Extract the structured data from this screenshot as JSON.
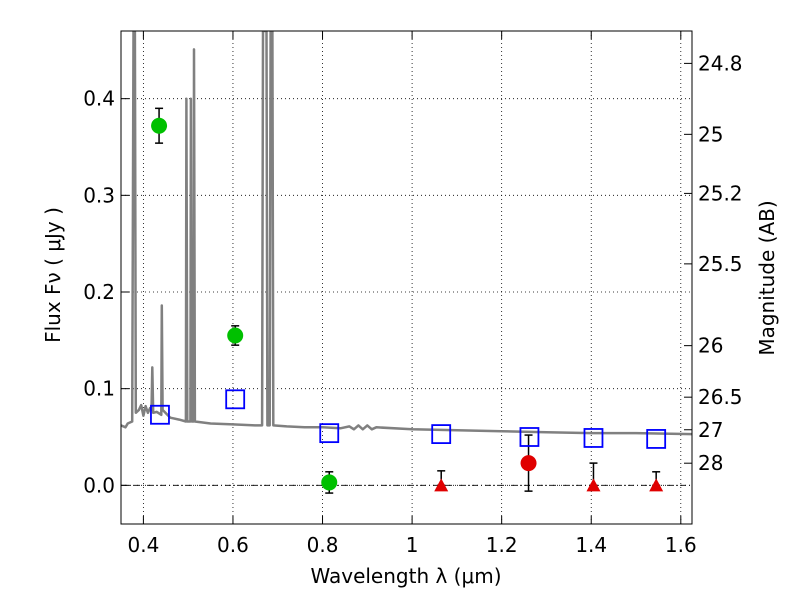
{
  "chart_data": {
    "type": "scatter",
    "xlabel": "Wavelength  λ (μm)",
    "ylabel": "Flux  Fν  ( μJy )",
    "y2label": "Magnitude (AB)",
    "xlim": [
      0.35,
      1.625
    ],
    "ylim": [
      -0.04,
      0.47
    ],
    "x_ticks": [
      0.4,
      0.6,
      0.8,
      1.0,
      1.2,
      1.4,
      1.6
    ],
    "x_tick_labels": [
      "0.4",
      "0.6",
      "0.8",
      "1",
      "1.2",
      "1.4",
      "1.6"
    ],
    "y_ticks": [
      0.0,
      0.1,
      0.2,
      0.3,
      0.4
    ],
    "y_tick_labels": [
      "0.0",
      "0.1",
      "0.2",
      "0.3",
      "0.4"
    ],
    "magnitude_ticks": [
      {
        "label": "24.8",
        "flux": 0.4365
      },
      {
        "label": "25",
        "flux": 0.3631
      },
      {
        "label": "25.2",
        "flux": 0.302
      },
      {
        "label": "25.5",
        "flux": 0.2291
      },
      {
        "label": "26",
        "flux": 0.1445
      },
      {
        "label": "26.5",
        "flux": 0.0912
      },
      {
        "label": "27",
        "flux": 0.0575
      },
      {
        "label": "28",
        "flux": 0.0229
      }
    ],
    "grid": true,
    "colors": {
      "spectrum": "#808080",
      "green_points": "#00c000",
      "red_points": "#e00000",
      "model_squares": "#0000ff",
      "error_bars": "#000000"
    },
    "series": [
      {
        "kind": "spectrum",
        "points": [
          [
            0.35,
            0.062
          ],
          [
            0.36,
            0.06
          ],
          [
            0.365,
            0.064
          ],
          [
            0.375,
            0.066
          ],
          [
            0.378,
            0.47
          ],
          [
            0.381,
            0.47
          ],
          [
            0.383,
            0.075
          ],
          [
            0.39,
            0.078
          ],
          [
            0.395,
            0.083
          ],
          [
            0.4,
            0.072
          ],
          [
            0.405,
            0.082
          ],
          [
            0.41,
            0.075
          ],
          [
            0.415,
            0.08
          ],
          [
            0.418,
            0.078
          ],
          [
            0.42,
            0.122
          ],
          [
            0.422,
            0.075
          ],
          [
            0.43,
            0.076
          ],
          [
            0.44,
            0.073
          ],
          [
            0.441,
            0.186
          ],
          [
            0.443,
            0.078
          ],
          [
            0.46,
            0.07
          ],
          [
            0.48,
            0.068
          ],
          [
            0.495,
            0.066
          ],
          [
            0.496,
            0.4
          ],
          [
            0.498,
            0.066
          ],
          [
            0.505,
            0.066
          ],
          [
            0.506,
            0.4
          ],
          [
            0.508,
            0.066
          ],
          [
            0.512,
            0.066
          ],
          [
            0.513,
            0.451
          ],
          [
            0.515,
            0.066
          ],
          [
            0.55,
            0.064
          ],
          [
            0.6,
            0.063
          ],
          [
            0.65,
            0.062
          ],
          [
            0.665,
            0.062
          ],
          [
            0.667,
            0.47
          ],
          [
            0.675,
            0.47
          ],
          [
            0.677,
            0.062
          ],
          [
            0.682,
            0.062
          ],
          [
            0.684,
            0.47
          ],
          [
            0.688,
            0.47
          ],
          [
            0.69,
            0.062
          ],
          [
            0.72,
            0.061
          ],
          [
            0.76,
            0.06
          ],
          [
            0.8,
            0.06
          ],
          [
            0.84,
            0.059
          ],
          [
            0.86,
            0.061
          ],
          [
            0.87,
            0.058
          ],
          [
            0.88,
            0.062
          ],
          [
            0.89,
            0.058
          ],
          [
            0.9,
            0.062
          ],
          [
            0.91,
            0.058
          ],
          [
            0.92,
            0.06
          ],
          [
            1.0,
            0.058
          ],
          [
            1.1,
            0.057
          ],
          [
            1.2,
            0.056
          ],
          [
            1.3,
            0.055
          ],
          [
            1.4,
            0.054
          ],
          [
            1.5,
            0.054
          ],
          [
            1.625,
            0.053
          ]
        ]
      },
      {
        "kind": "green_points",
        "points": [
          {
            "x": 0.435,
            "y": 0.372,
            "err": 0.018
          },
          {
            "x": 0.605,
            "y": 0.155,
            "err": 0.01
          },
          {
            "x": 0.815,
            "y": 0.003,
            "err": 0.011
          }
        ]
      },
      {
        "kind": "red_points",
        "points": [
          {
            "x": 1.26,
            "y": 0.023,
            "err": 0.029
          }
        ]
      },
      {
        "kind": "red_triangles",
        "points": [
          {
            "x": 1.065,
            "y": 0.0,
            "err_up": 0.015
          },
          {
            "x": 1.405,
            "y": 0.0,
            "err_up": 0.023
          },
          {
            "x": 1.545,
            "y": 0.0,
            "err_up": 0.014
          }
        ]
      },
      {
        "kind": "model_squares",
        "points": [
          {
            "x": 0.437,
            "y": 0.073
          },
          {
            "x": 0.605,
            "y": 0.089
          },
          {
            "x": 0.815,
            "y": 0.054
          },
          {
            "x": 1.065,
            "y": 0.053
          },
          {
            "x": 1.262,
            "y": 0.05
          },
          {
            "x": 1.405,
            "y": 0.049
          },
          {
            "x": 1.545,
            "y": 0.048
          }
        ]
      }
    ]
  }
}
